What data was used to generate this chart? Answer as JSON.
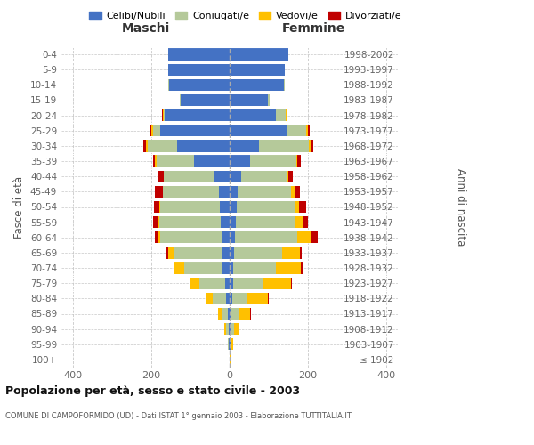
{
  "age_groups": [
    "100+",
    "95-99",
    "90-94",
    "85-89",
    "80-84",
    "75-79",
    "70-74",
    "65-69",
    "60-64",
    "55-59",
    "50-54",
    "45-49",
    "40-44",
    "35-39",
    "30-34",
    "25-29",
    "20-24",
    "15-19",
    "10-14",
    "5-9",
    "0-4"
  ],
  "birth_years": [
    "≤ 1902",
    "1903-1907",
    "1908-1912",
    "1913-1917",
    "1918-1922",
    "1923-1927",
    "1928-1932",
    "1933-1937",
    "1938-1942",
    "1943-1947",
    "1948-1952",
    "1953-1957",
    "1958-1962",
    "1963-1967",
    "1968-1972",
    "1973-1977",
    "1978-1982",
    "1983-1987",
    "1988-1992",
    "1993-1997",
    "1998-2002"
  ],
  "maschi_celibe": [
    1,
    2,
    3,
    5,
    8,
    12,
    18,
    20,
    20,
    22,
    25,
    28,
    42,
    90,
    135,
    178,
    165,
    125,
    155,
    158,
    157
  ],
  "maschi_coniugato": [
    0,
    2,
    6,
    14,
    35,
    65,
    98,
    120,
    158,
    158,
    152,
    142,
    127,
    97,
    75,
    18,
    4,
    2,
    1,
    0,
    0
  ],
  "maschi_vedovo": [
    0,
    1,
    4,
    10,
    18,
    22,
    24,
    18,
    4,
    3,
    2,
    1,
    0,
    4,
    5,
    4,
    2,
    0,
    0,
    0,
    0
  ],
  "maschi_divorziato": [
    0,
    0,
    0,
    0,
    0,
    0,
    0,
    5,
    10,
    12,
    15,
    20,
    12,
    5,
    5,
    3,
    1,
    0,
    0,
    0,
    0
  ],
  "femmine_nubile": [
    1,
    2,
    3,
    5,
    7,
    8,
    10,
    12,
    14,
    16,
    18,
    20,
    30,
    52,
    75,
    148,
    118,
    98,
    138,
    142,
    150
  ],
  "femmine_coniugata": [
    0,
    2,
    8,
    17,
    38,
    78,
    108,
    122,
    158,
    152,
    148,
    137,
    117,
    118,
    127,
    48,
    26,
    4,
    2,
    0,
    0
  ],
  "femmine_vedova": [
    1,
    5,
    15,
    30,
    52,
    72,
    65,
    45,
    35,
    18,
    12,
    8,
    4,
    4,
    4,
    4,
    2,
    0,
    0,
    0,
    0
  ],
  "femmine_divorziata": [
    0,
    0,
    0,
    2,
    2,
    2,
    3,
    5,
    18,
    15,
    18,
    15,
    10,
    8,
    8,
    5,
    2,
    0,
    0,
    0,
    0
  ],
  "color_celibe": "#4472c4",
  "color_coniugato": "#b5c99a",
  "color_vedovo": "#ffc000",
  "color_divorziato": "#c00000",
  "legend_labels": [
    "Celibi/Nubili",
    "Coniugati/e",
    "Vedovi/e",
    "Divorziati/e"
  ],
  "title": "Popolazione per età, sesso e stato civile - 2003",
  "subtitle": "COMUNE DI CAMPOFORMIDO (UD) - Dati ISTAT 1° gennaio 2003 - Elaborazione TUTTITALIA.IT",
  "label_maschi": "Maschi",
  "label_femmine": "Femmine",
  "ylabel_left": "Fasce di età",
  "ylabel_right": "Anni di nascita",
  "xlim": 430,
  "bg_color": "#ffffff",
  "grid_color": "#c8c8c8"
}
